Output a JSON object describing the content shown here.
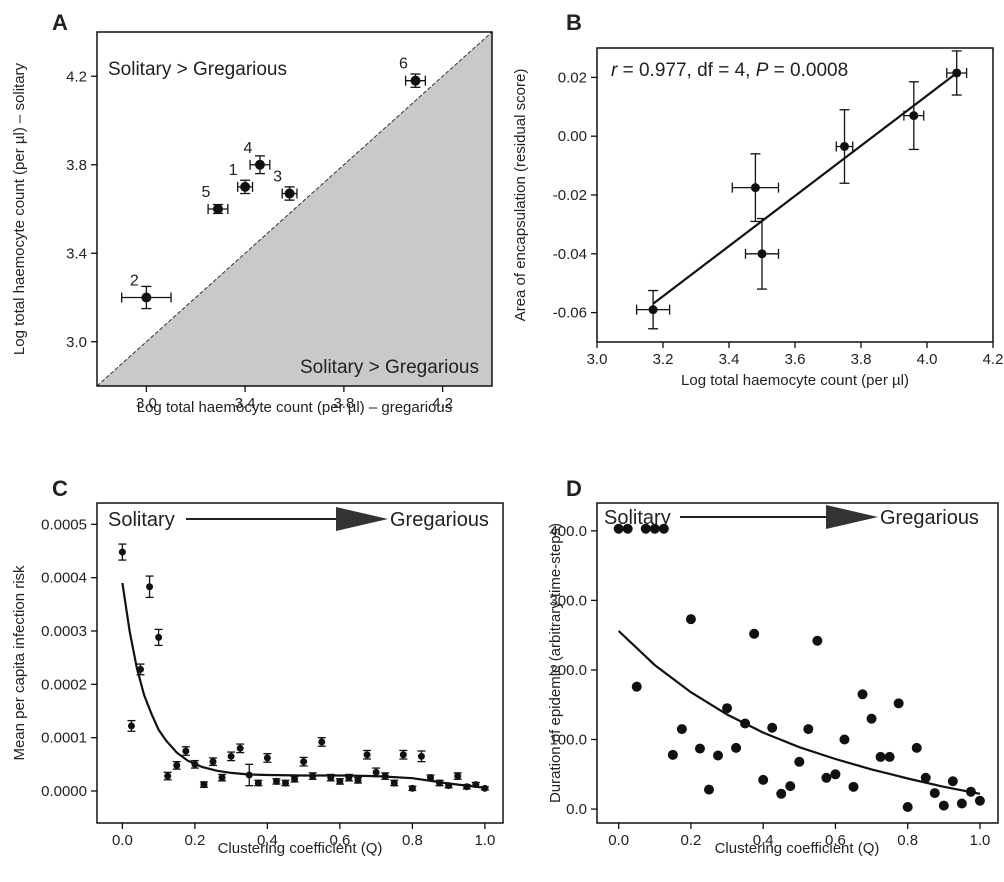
{
  "chart_data": [
    {
      "panel": "A",
      "type": "scatter",
      "xlabel": "Log total haemocyte count (per µl) – gregarious",
      "ylabel": "Log total haemocyte count (per µl) – solitary",
      "xlim": [
        2.8,
        4.4
      ],
      "ylim": [
        2.8,
        4.4
      ],
      "xticks": [
        3.0,
        3.4,
        3.8,
        4.2
      ],
      "yticks": [
        3.0,
        3.4,
        3.8,
        4.2
      ],
      "annotations": [
        "Solitary > Gregarious",
        "Solitary > Gregarious"
      ],
      "reference_line": "y = x, region below shaded grey",
      "points": [
        {
          "label": "1",
          "x": 3.4,
          "y": 3.7,
          "xerr": 0.03,
          "yerr": 0.03
        },
        {
          "label": "2",
          "x": 3.0,
          "y": 3.2,
          "xerr": 0.1,
          "yerr": 0.05
        },
        {
          "label": "3",
          "x": 3.58,
          "y": 3.67,
          "xerr": 0.03,
          "yerr": 0.03
        },
        {
          "label": "4",
          "x": 3.46,
          "y": 3.8,
          "xerr": 0.04,
          "yerr": 0.04
        },
        {
          "label": "5",
          "x": 3.29,
          "y": 3.6,
          "xerr": 0.04,
          "yerr": 0.02
        },
        {
          "label": "6",
          "x": 4.09,
          "y": 4.18,
          "xerr": 0.04,
          "yerr": 0.03
        }
      ]
    },
    {
      "panel": "B",
      "type": "scatter",
      "xlabel": "Log total haemocyte count (per µl)",
      "ylabel": "Area of encapsulation (residual score)",
      "xlim": [
        3.0,
        4.2
      ],
      "ylim": [
        -0.07,
        0.03
      ],
      "xticks": [
        3.0,
        3.2,
        3.4,
        3.6,
        3.8,
        4.0,
        4.2
      ],
      "yticks": [
        -0.06,
        -0.04,
        -0.02,
        0.0,
        0.02
      ],
      "ytick_labels": [
        "-0.06",
        "-0.04",
        "-0.02",
        "0.00",
        "0.02"
      ],
      "stat_r": "r",
      "stat_rest": " = 0.977, df = 4, ",
      "stat_p": "P",
      "stat_pval": " = 0.0008",
      "fit": {
        "x": [
          3.17,
          4.09
        ],
        "y": [
          -0.057,
          0.0215
        ]
      },
      "points": [
        {
          "x": 3.17,
          "y": -0.059,
          "xerr": 0.05,
          "yerr": 0.0065
        },
        {
          "x": 3.48,
          "y": -0.0175,
          "xerr": 0.07,
          "yerr": 0.0115
        },
        {
          "x": 3.5,
          "y": -0.04,
          "xerr": 0.05,
          "yerr": 0.012
        },
        {
          "x": 3.75,
          "y": -0.0035,
          "xerr": 0.025,
          "yerr": 0.0125
        },
        {
          "x": 3.96,
          "y": 0.007,
          "xerr": 0.03,
          "yerr": 0.0115
        },
        {
          "x": 4.09,
          "y": 0.0215,
          "xerr": 0.03,
          "yerr": 0.0075
        }
      ]
    },
    {
      "panel": "C",
      "type": "scatter",
      "xlabel": "Clustering coefficient (Q)",
      "ylabel": "Mean per capita infection risk",
      "xlim": [
        -0.07,
        1.05
      ],
      "ylim": [
        -6e-05,
        0.00054
      ],
      "xticks": [
        0.0,
        0.2,
        0.4,
        0.6,
        0.8,
        1.0
      ],
      "yticks": [
        0.0,
        0.0001,
        0.0002,
        0.0003,
        0.0004,
        0.0005
      ],
      "ytick_labels": [
        "0.0000",
        "0.0001",
        "0.0002",
        "0.0003",
        "0.0004",
        "0.0005"
      ],
      "flag_left": "Solitary",
      "flag_right": "Gregarious",
      "points": [
        {
          "x": 0.0,
          "y": 0.000448,
          "err": 1.5e-05
        },
        {
          "x": 0.025,
          "y": 0.000122,
          "err": 1e-05
        },
        {
          "x": 0.05,
          "y": 0.000228,
          "err": 1e-05
        },
        {
          "x": 0.075,
          "y": 0.000383,
          "err": 2e-05
        },
        {
          "x": 0.1,
          "y": 0.000288,
          "err": 1.5e-05
        },
        {
          "x": 0.125,
          "y": 2.8e-05,
          "err": 7e-06
        },
        {
          "x": 0.15,
          "y": 4.8e-05,
          "err": 7e-06
        },
        {
          "x": 0.175,
          "y": 7.5e-05,
          "err": 8e-06
        },
        {
          "x": 0.2,
          "y": 5e-05,
          "err": 7e-06
        },
        {
          "x": 0.225,
          "y": 1.2e-05,
          "err": 5e-06
        },
        {
          "x": 0.25,
          "y": 5.5e-05,
          "err": 7e-06
        },
        {
          "x": 0.275,
          "y": 2.5e-05,
          "err": 6e-06
        },
        {
          "x": 0.3,
          "y": 6.5e-05,
          "err": 8e-06
        },
        {
          "x": 0.325,
          "y": 8e-05,
          "err": 8e-06
        },
        {
          "x": 0.35,
          "y": 3e-05,
          "err": 2e-05
        },
        {
          "x": 0.375,
          "y": 1.5e-05,
          "err": 5e-06
        },
        {
          "x": 0.4,
          "y": 6.2e-05,
          "err": 8e-06
        },
        {
          "x": 0.425,
          "y": 1.8e-05,
          "err": 5e-06
        },
        {
          "x": 0.45,
          "y": 1.5e-05,
          "err": 5e-06
        },
        {
          "x": 0.475,
          "y": 2.2e-05,
          "err": 5e-06
        },
        {
          "x": 0.5,
          "y": 5.5e-05,
          "err": 8e-06
        },
        {
          "x": 0.525,
          "y": 2.8e-05,
          "err": 6e-06
        },
        {
          "x": 0.55,
          "y": 9.2e-05,
          "err": 8e-06
        },
        {
          "x": 0.575,
          "y": 2.5e-05,
          "err": 6e-06
        },
        {
          "x": 0.6,
          "y": 1.8e-05,
          "err": 5e-06
        },
        {
          "x": 0.625,
          "y": 2.5e-05,
          "err": 6e-06
        },
        {
          "x": 0.65,
          "y": 2e-05,
          "err": 5e-06
        },
        {
          "x": 0.675,
          "y": 6.8e-05,
          "err": 8e-06
        },
        {
          "x": 0.7,
          "y": 3.5e-05,
          "err": 8e-06
        },
        {
          "x": 0.725,
          "y": 2.8e-05,
          "err": 6e-06
        },
        {
          "x": 0.75,
          "y": 1.5e-05,
          "err": 5e-06
        },
        {
          "x": 0.775,
          "y": 6.8e-05,
          "err": 8e-06
        },
        {
          "x": 0.8,
          "y": 5e-06,
          "err": 4e-06
        },
        {
          "x": 0.825,
          "y": 6.5e-05,
          "err": 1e-05
        },
        {
          "x": 0.85,
          "y": 2.5e-05,
          "err": 5e-06
        },
        {
          "x": 0.875,
          "y": 1.5e-05,
          "err": 5e-06
        },
        {
          "x": 0.9,
          "y": 1e-05,
          "err": 4e-06
        },
        {
          "x": 0.925,
          "y": 2.8e-05,
          "err": 6e-06
        },
        {
          "x": 0.95,
          "y": 8e-06,
          "err": 4e-06
        },
        {
          "x": 0.975,
          "y": 1.2e-05,
          "err": 4e-06
        },
        {
          "x": 1.0,
          "y": 5e-06,
          "err": 3e-06
        }
      ],
      "fit": {
        "x": [
          0.0,
          0.02,
          0.04,
          0.06,
          0.08,
          0.1,
          0.12,
          0.15,
          0.18,
          0.22,
          0.26,
          0.3,
          0.35,
          0.4,
          0.5,
          0.6,
          0.7,
          0.8,
          0.9,
          1.0
        ],
        "y": [
          0.00039,
          0.0003,
          0.00023,
          0.00018,
          0.000145,
          0.000115,
          9.5e-05,
          7.2e-05,
          5.7e-05,
          4.5e-05,
          3.8e-05,
          3.4e-05,
          3.1e-05,
          3e-05,
          2.9e-05,
          2.9e-05,
          2.8e-05,
          2.4e-05,
          1.4e-05,
          6e-06
        ]
      }
    },
    {
      "panel": "D",
      "type": "scatter",
      "xlabel": "Clustering coefficient (Q)",
      "ylabel": "Duration of epidemic (arbitrary time-steps)",
      "xlim": [
        -0.06,
        1.05
      ],
      "ylim": [
        -20,
        440
      ],
      "xticks": [
        0.0,
        0.2,
        0.4,
        0.6,
        0.8,
        1.0
      ],
      "yticks": [
        0,
        100,
        200,
        300,
        400
      ],
      "flag_left": "Solitary",
      "flag_right": "Gregarious",
      "points": [
        {
          "x": 0.0,
          "y": 403
        },
        {
          "x": 0.025,
          "y": 403
        },
        {
          "x": 0.075,
          "y": 403
        },
        {
          "x": 0.1,
          "y": 403
        },
        {
          "x": 0.125,
          "y": 403
        },
        {
          "x": 0.05,
          "y": 176
        },
        {
          "x": 0.15,
          "y": 78
        },
        {
          "x": 0.175,
          "y": 115
        },
        {
          "x": 0.2,
          "y": 273
        },
        {
          "x": 0.225,
          "y": 87
        },
        {
          "x": 0.25,
          "y": 28
        },
        {
          "x": 0.275,
          "y": 77
        },
        {
          "x": 0.3,
          "y": 145
        },
        {
          "x": 0.325,
          "y": 88
        },
        {
          "x": 0.35,
          "y": 123
        },
        {
          "x": 0.375,
          "y": 252
        },
        {
          "x": 0.4,
          "y": 42
        },
        {
          "x": 0.425,
          "y": 117
        },
        {
          "x": 0.45,
          "y": 22
        },
        {
          "x": 0.475,
          "y": 33
        },
        {
          "x": 0.5,
          "y": 68
        },
        {
          "x": 0.525,
          "y": 115
        },
        {
          "x": 0.55,
          "y": 242
        },
        {
          "x": 0.575,
          "y": 45
        },
        {
          "x": 0.6,
          "y": 50
        },
        {
          "x": 0.625,
          "y": 100
        },
        {
          "x": 0.65,
          "y": 32
        },
        {
          "x": 0.675,
          "y": 165
        },
        {
          "x": 0.7,
          "y": 130
        },
        {
          "x": 0.725,
          "y": 75
        },
        {
          "x": 0.75,
          "y": 75
        },
        {
          "x": 0.775,
          "y": 152
        },
        {
          "x": 0.8,
          "y": 3
        },
        {
          "x": 0.825,
          "y": 88
        },
        {
          "x": 0.85,
          "y": 45
        },
        {
          "x": 0.875,
          "y": 23
        },
        {
          "x": 0.9,
          "y": 5
        },
        {
          "x": 0.925,
          "y": 40
        },
        {
          "x": 0.95,
          "y": 8
        },
        {
          "x": 0.975,
          "y": 25
        },
        {
          "x": 1.0,
          "y": 12
        }
      ],
      "fit": {
        "x": [
          0.0,
          0.1,
          0.2,
          0.3,
          0.4,
          0.5,
          0.6,
          0.7,
          0.8,
          0.9,
          1.0
        ],
        "y": [
          256,
          207,
          168,
          136,
          110,
          89,
          72,
          57,
          44,
          32,
          22
        ]
      }
    }
  ]
}
